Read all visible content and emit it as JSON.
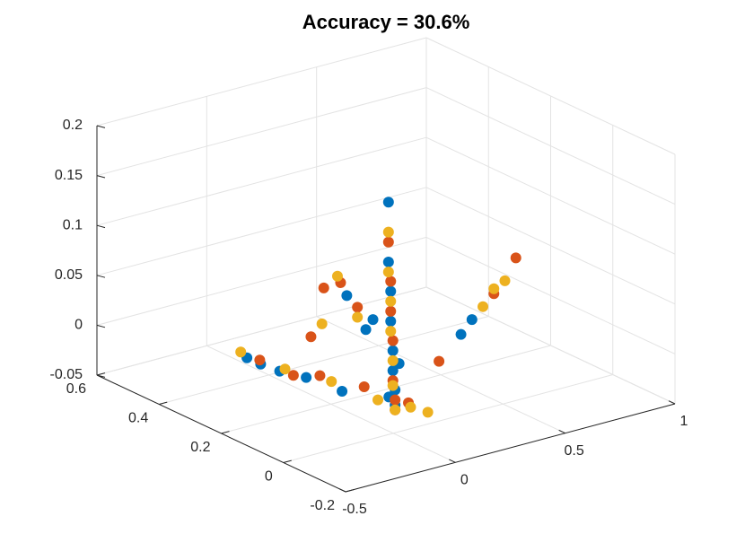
{
  "chart_data": {
    "type": "scatter3d",
    "title": "Accuracy = 30.6%",
    "xlim": [
      -0.5,
      1
    ],
    "xticks": [
      -0.5,
      0,
      0.5,
      1
    ],
    "ylim": [
      -0.2,
      0.6
    ],
    "yticks": [
      -0.2,
      0,
      0.2,
      0.4,
      0.6
    ],
    "zlim": [
      -0.05,
      0.2
    ],
    "zticks": [
      -0.05,
      0,
      0.05,
      0.1,
      0.15,
      0.2
    ],
    "grid": true,
    "series": [
      {
        "color": "#0072BD",
        "x": [
          0.15,
          0.15,
          0.14,
          0.14,
          0.13,
          0.13,
          0.12,
          0.12,
          0.15,
          0.14,
          0.05,
          0.0,
          -0.05,
          -0.08,
          -0.1,
          0.45,
          0.5,
          0.13,
          0.1,
          0.12
        ],
        "y": [
          0.1,
          0.1,
          0.1,
          0.1,
          0.1,
          0.1,
          0.1,
          0.1,
          0.12,
          0.08,
          0.2,
          0.28,
          0.33,
          0.37,
          0.4,
          0.1,
          0.1,
          0.18,
          0.22,
          0.15
        ],
        "z": [
          -0.045,
          -0.03,
          -0.01,
          0.01,
          0.04,
          0.07,
          0.1,
          0.16,
          -0.04,
          0.0,
          -0.04,
          -0.035,
          -0.033,
          -0.03,
          -0.027,
          0.008,
          0.02,
          0.02,
          0.05,
          0.035
        ]
      },
      {
        "color": "#D95319",
        "x": [
          0.15,
          0.14,
          0.14,
          0.13,
          0.13,
          0.12,
          0.15,
          0.08,
          0.02,
          -0.03,
          -0.07,
          0.6,
          0.7,
          0.35,
          0.12,
          0.08,
          0.1,
          0.05,
          0.14
        ],
        "y": [
          0.1,
          0.1,
          0.1,
          0.1,
          0.1,
          0.1,
          0.1,
          0.15,
          0.25,
          0.3,
          0.38,
          0.1,
          0.1,
          0.1,
          0.2,
          0.28,
          0.24,
          0.3,
          0.05
        ],
        "z": [
          -0.04,
          -0.02,
          0.02,
          0.05,
          0.08,
          0.12,
          -0.05,
          -0.03,
          -0.03,
          -0.034,
          -0.028,
          0.04,
          0.07,
          -0.013,
          0.04,
          0.05,
          0.06,
          0.0,
          -0.035
        ]
      },
      {
        "color": "#EDB120",
        "x": [
          0.15,
          0.14,
          0.14,
          0.13,
          0.13,
          0.12,
          0.12,
          0.1,
          0.03,
          -0.04,
          -0.1,
          0.55,
          0.6,
          0.65,
          0.1,
          0.12,
          0.1,
          0.15,
          0.2
        ],
        "y": [
          0.1,
          0.1,
          0.1,
          0.1,
          0.1,
          0.1,
          0.1,
          0.12,
          0.22,
          0.32,
          0.42,
          0.1,
          0.1,
          0.1,
          0.25,
          0.2,
          0.3,
          0.05,
          0.03
        ],
        "z": [
          -0.05,
          -0.025,
          0.0,
          0.03,
          0.06,
          0.09,
          0.13,
          -0.04,
          -0.032,
          -0.03,
          -0.024,
          0.03,
          0.045,
          0.05,
          0.065,
          0.03,
          0.01,
          -0.04,
          -0.045
        ]
      }
    ]
  }
}
